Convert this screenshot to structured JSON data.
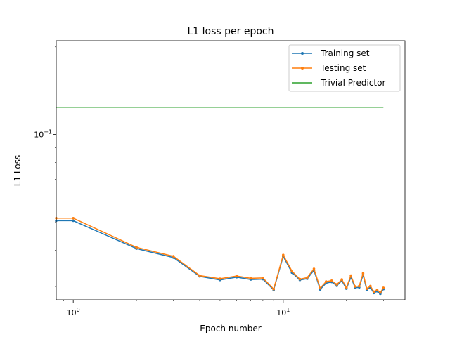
{
  "chart_data": {
    "type": "line",
    "title": "L1 loss per epoch",
    "xlabel": "Epoch number",
    "ylabel": "L1 Loss",
    "xscale": "log",
    "yscale": "log",
    "xlim": [
      0.83,
      38
    ],
    "ylim": [
      0.027,
      0.21
    ],
    "grid": false,
    "legend_position": "top-right",
    "x_ticks": [
      {
        "value": 1,
        "base": "10",
        "exp": "0"
      },
      {
        "value": 10,
        "base": "10",
        "exp": "1"
      }
    ],
    "y_ticks": [
      {
        "value": 0.1,
        "base": "10",
        "exp": "−1"
      }
    ],
    "x": [
      0,
      1,
      2,
      3,
      4,
      5,
      6,
      7,
      8,
      9,
      10,
      11,
      12,
      13,
      14,
      15,
      16,
      17,
      18,
      19,
      20,
      21,
      22,
      23,
      24,
      25,
      26,
      27,
      28,
      29,
      30
    ],
    "series": [
      {
        "name": "Training set",
        "color": "#1f77b4",
        "marker": "dot",
        "values": [
          0.0505,
          0.0505,
          0.0405,
          0.0377,
          0.0325,
          0.0316,
          0.0323,
          0.0317,
          0.0318,
          0.0292,
          0.0381,
          0.0335,
          0.0316,
          0.0319,
          0.0341,
          0.0293,
          0.0308,
          0.0311,
          0.0302,
          0.0314,
          0.0295,
          0.0323,
          0.0297,
          0.0298,
          0.0329,
          0.0292,
          0.0298,
          0.0285,
          0.0289,
          0.0283,
          0.0294
        ]
      },
      {
        "name": "Testing set",
        "color": "#ff7f0e",
        "marker": "dot",
        "values": [
          0.0515,
          0.0515,
          0.0409,
          0.0381,
          0.0327,
          0.0319,
          0.0326,
          0.032,
          0.0321,
          0.0294,
          0.0385,
          0.0339,
          0.0318,
          0.0322,
          0.0345,
          0.0296,
          0.0312,
          0.0314,
          0.0305,
          0.0317,
          0.0298,
          0.0327,
          0.03,
          0.0301,
          0.0333,
          0.0295,
          0.0301,
          0.0288,
          0.0292,
          0.0286,
          0.0297
        ]
      },
      {
        "name": "Trivial Predictor",
        "color": "#2ca02c",
        "marker": "none",
        "values": [
          0.124,
          0.124,
          0.124,
          0.124,
          0.124,
          0.124,
          0.124,
          0.124,
          0.124,
          0.124,
          0.124,
          0.124,
          0.124,
          0.124,
          0.124,
          0.124,
          0.124,
          0.124,
          0.124,
          0.124,
          0.124,
          0.124,
          0.124,
          0.124,
          0.124,
          0.124,
          0.124,
          0.124,
          0.124,
          0.124,
          0.124
        ]
      }
    ]
  }
}
